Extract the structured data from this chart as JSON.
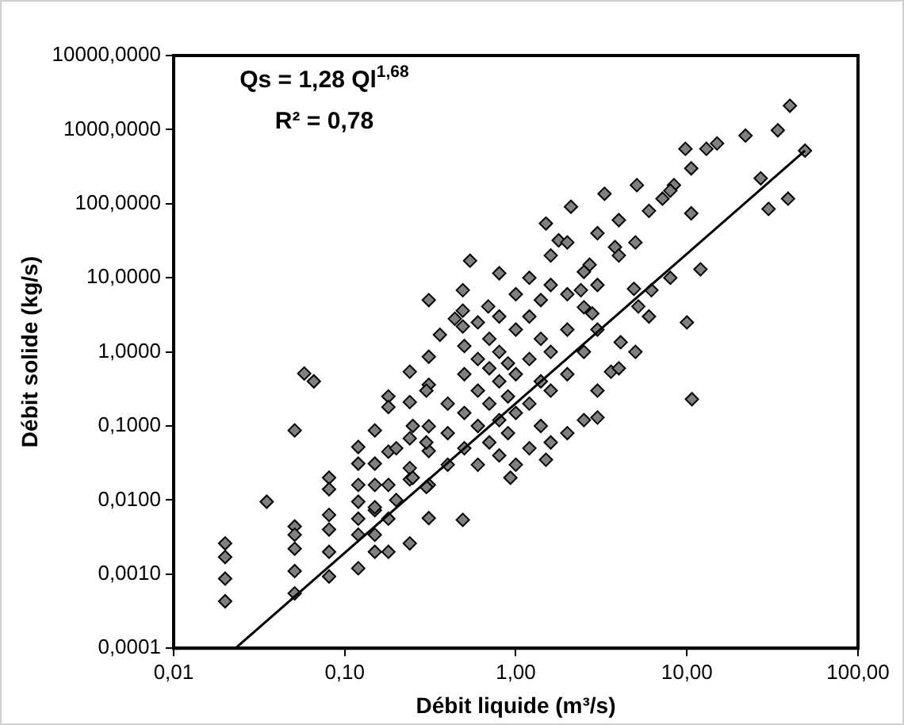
{
  "chart_data": {
    "type": "scatter",
    "xlabel": "Débit liquide (m³/s)",
    "ylabel": "Débit solide (kg/s)",
    "log": "xy",
    "grid": false,
    "legend": false,
    "marker": "diamond",
    "xlim": [
      0.01,
      100
    ],
    "xticks": [
      {
        "value": 0.01,
        "label": "0,01"
      },
      {
        "value": 0.1,
        "label": "0,10"
      },
      {
        "value": 1,
        "label": "1,00"
      },
      {
        "value": 10,
        "label": "10,00"
      },
      {
        "value": 100,
        "label": "100,00"
      }
    ],
    "ylim": [
      0.0001,
      10000
    ],
    "yticks": [
      {
        "value": 0.0001,
        "label": "0,0001"
      },
      {
        "value": 0.001,
        "label": "0,0010"
      },
      {
        "value": 0.01,
        "label": "0,0100"
      },
      {
        "value": 0.1,
        "label": "0,1000"
      },
      {
        "value": 1,
        "label": "1,0000"
      },
      {
        "value": 10,
        "label": "10,0000"
      },
      {
        "value": 100,
        "label": "100,0000"
      },
      {
        "value": 1000,
        "label": "1000,0000"
      },
      {
        "value": 10000,
        "label": "10000,0000"
      }
    ],
    "annotations": [
      "Qs = 1,28 Ql$^{1,68}$",
      "R² = 0,78"
    ],
    "series": [
      {
        "type": "scatter",
        "color": "#808080",
        "x": [
          0.02,
          0.02,
          0.02,
          0.02,
          0.035,
          0.051,
          0.058,
          0.066,
          0.051,
          0.051,
          0.051,
          0.051,
          0.051,
          0.081,
          0.081,
          0.081,
          0.081,
          0.081,
          0.081,
          0.12,
          0.12,
          0.12,
          0.12,
          0.12,
          0.12,
          0.12,
          0.15,
          0.15,
          0.15,
          0.15,
          0.15,
          0.15,
          0.18,
          0.18,
          0.18,
          0.18,
          0.18,
          0.18,
          0.24,
          0.24,
          0.24,
          0.24,
          0.24,
          0.24,
          0.31,
          0.31,
          0.31,
          0.31,
          0.31,
          0.31,
          0.36,
          0.44,
          0.49,
          0.93,
          1.5,
          3.0,
          5.2,
          10,
          10.7,
          3.6,
          4.1,
          40,
          49,
          39,
          30,
          27,
          34,
          22,
          13,
          15,
          9.8,
          10.6,
          12,
          6.2,
          4.9,
          2.1,
          3.3,
          5.1,
          7.2,
          8.4,
          10.6,
          0.54,
          1.5,
          1.78,
          0.8,
          0.49,
          0.49,
          0.49,
          0.69,
          2.7,
          3.8,
          2.4,
          2.8,
          0.31,
          0.4,
          0.4,
          0.4,
          0.5,
          0.5,
          0.5,
          0.5,
          0.6,
          0.6,
          0.6,
          0.6,
          0.6,
          0.7,
          0.7,
          0.7,
          0.7,
          0.8,
          0.8,
          0.8,
          0.8,
          0.8,
          0.9,
          0.9,
          0.9,
          1,
          1,
          1,
          1,
          1,
          1.2,
          1.2,
          1.2,
          1.2,
          1.2,
          1.4,
          1.4,
          1.4,
          1.4,
          1.6,
          1.6,
          1.6,
          1.6,
          1.6,
          2,
          2,
          2,
          2,
          2,
          2.5,
          2.5,
          2.5,
          2.5,
          3,
          3,
          3,
          3,
          4,
          4,
          4,
          5,
          5,
          6,
          6,
          8,
          8,
          0.3,
          0.3,
          0.3,
          0.25,
          0.25,
          0.2,
          0.2,
          0.15
        ],
        "values": [
          0.0026,
          0.0017,
          0.00087,
          0.00043,
          0.0095,
          0.087,
          0.51,
          0.4,
          0.0044,
          0.0034,
          0.0022,
          0.0011,
          0.00055,
          0.02,
          0.014,
          0.0063,
          0.004,
          0.002,
          0.00093,
          0.052,
          0.031,
          0.016,
          0.0095,
          0.0056,
          0.0034,
          0.0012,
          0.087,
          0.031,
          0.016,
          0.0073,
          0.0034,
          0.002,
          0.25,
          0.18,
          0.045,
          0.016,
          0.0056,
          0.002,
          0.54,
          0.21,
          0.068,
          0.027,
          0.019,
          0.0026,
          0.86,
          0.36,
          0.099,
          0.046,
          0.016,
          0.0057,
          1.7,
          2.8,
          0.0054,
          0.02,
          0.035,
          0.13,
          4.1,
          2.5,
          0.23,
          0.54,
          1.35,
          2100,
          520,
          117,
          85,
          220,
          980,
          830,
          550,
          650,
          550,
          300,
          13,
          6.8,
          7.1,
          91,
          136,
          178,
          117,
          178,
          74,
          17,
          54,
          32,
          11.5,
          6.8,
          3.6,
          2.2,
          4.1,
          15,
          26,
          6.8,
          3.3,
          5,
          0.03,
          0.08,
          0.2,
          0.05,
          0.15,
          0.5,
          1.2,
          0.03,
          0.1,
          0.3,
          0.8,
          2.5,
          0.06,
          0.2,
          0.6,
          1.5,
          0.04,
          0.12,
          0.4,
          1,
          3,
          0.08,
          0.25,
          0.7,
          0.03,
          0.15,
          0.5,
          2,
          6,
          0.05,
          0.2,
          0.8,
          3,
          10,
          0.1,
          0.4,
          1.5,
          5,
          0.06,
          0.3,
          1,
          8,
          20,
          0.08,
          0.5,
          2,
          6,
          30,
          0.12,
          1,
          4,
          12,
          0.3,
          2,
          8,
          40,
          0.6,
          20,
          60,
          1,
          30,
          3,
          80,
          10,
          150,
          0.015,
          0.06,
          0.3,
          0.02,
          0.1,
          0.01,
          0.05,
          0.008
        ]
      },
      {
        "type": "line",
        "color": "#000000",
        "marker": "none",
        "x": [
          0.023,
          49
        ],
        "values": [
          0.0001,
          520
        ]
      }
    ]
  }
}
